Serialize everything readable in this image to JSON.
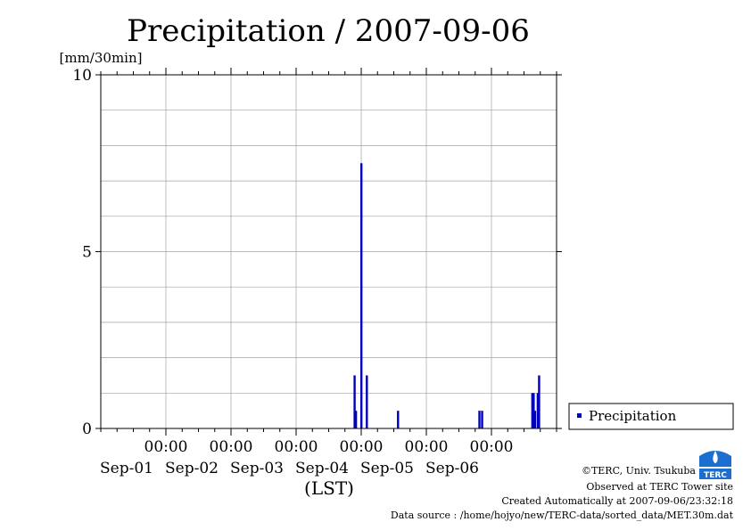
{
  "chart_data": {
    "type": "bar",
    "title": "Precipitation / 2007-09-06",
    "ylabel": "[mm/30min]",
    "xlabel": "(LST)",
    "ylim": [
      0,
      10
    ],
    "yticks": [
      0,
      5,
      10
    ],
    "xrange_days": [
      "2007-08-31",
      "2007-09-07"
    ],
    "xticks": [
      {
        "time": "00:00",
        "date": "Sep-01"
      },
      {
        "time": "00:00",
        "date": "Sep-02"
      },
      {
        "time": "00:00",
        "date": "Sep-03"
      },
      {
        "time": "00:00",
        "date": "Sep-04"
      },
      {
        "time": "00:00",
        "date": "Sep-05"
      },
      {
        "time": "00:00",
        "date": "Sep-06"
      }
    ],
    "grid": true,
    "legend_position": "right",
    "series": [
      {
        "name": "Precipitation",
        "color": "#0000bb",
        "points": [
          {
            "t": "2007-09-03T21:30",
            "v": 1.5
          },
          {
            "t": "2007-09-03T22:00",
            "v": 0.5
          },
          {
            "t": "2007-09-04T00:00",
            "v": 7.5
          },
          {
            "t": "2007-09-04T02:00",
            "v": 1.5
          },
          {
            "t": "2007-09-04T13:30",
            "v": 0.5
          },
          {
            "t": "2007-09-05T19:30",
            "v": 0.5
          },
          {
            "t": "2007-09-05T20:30",
            "v": 0.5
          },
          {
            "t": "2007-09-06T15:00",
            "v": 1.0
          },
          {
            "t": "2007-09-06T15:30",
            "v": 1.0
          },
          {
            "t": "2007-09-06T16:00",
            "v": 0.5
          },
          {
            "t": "2007-09-06T17:00",
            "v": 1.0
          },
          {
            "t": "2007-09-06T17:30",
            "v": 1.5
          }
        ]
      }
    ]
  },
  "footer": {
    "logo_text": "TERC",
    "copyright": "©TERC, Univ. Tsukuba",
    "observed": "Observed at TERC Tower site",
    "created": "Created Automatically at 2007-09-06/23:32:18",
    "source": "Data source : /home/hojyo/new/TERC-data/sorted_data/MET.30m.dat"
  }
}
